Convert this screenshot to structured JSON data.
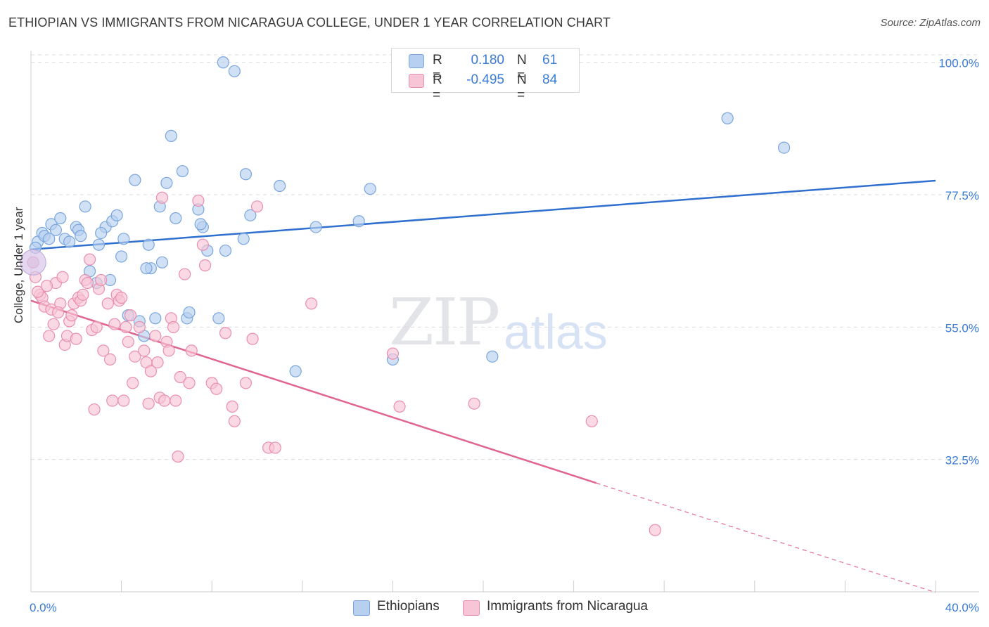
{
  "header": {
    "title": "ETHIOPIAN VS IMMIGRANTS FROM NICARAGUA COLLEGE, UNDER 1 YEAR CORRELATION CHART",
    "source": "Source: ZipAtlas.com"
  },
  "legend_top": {
    "rows": [
      {
        "r_label": "R =",
        "r_value": "0.180",
        "n_label": "N =",
        "n_value": "61"
      },
      {
        "r_label": "R =",
        "r_value": "-0.495",
        "n_label": "N =",
        "n_value": "84"
      }
    ]
  },
  "legend_bottom": {
    "items": [
      {
        "label": "Ethiopians"
      },
      {
        "label": "Immigrants from Nicaragua"
      }
    ]
  },
  "watermark": {
    "zip": "ZIP",
    "atlas": "atlas"
  },
  "colors": {
    "blue_fill": "#b7d0f0",
    "blue_stroke": "#7aa6dd",
    "blue_line": "#2f6fce",
    "pink_fill": "#f7c5d6",
    "pink_stroke": "#e98fae",
    "pink_line": "#e0658f",
    "axis_text": "#3a7bd5",
    "grid": "#dcdcdc"
  },
  "chart_data": {
    "type": "scatter",
    "title": "ETHIOPIAN VS IMMIGRANTS FROM NICARAGUA COLLEGE, UNDER 1 YEAR CORRELATION CHART",
    "xlabel": "",
    "ylabel": "College, Under 1 year",
    "xlim": [
      0,
      40
    ],
    "ylim": [
      10,
      102
    ],
    "x_tick_labels": [
      "0.0%",
      "40.0%"
    ],
    "y_ticks": [
      32.5,
      55.0,
      77.5,
      100.0
    ],
    "y_tick_labels": [
      "32.5%",
      "55.0%",
      "77.5%",
      "100.0%"
    ],
    "grid": true,
    "series": [
      {
        "name": "Ethiopians",
        "color": "blue",
        "trend": {
          "x": [
            0,
            40
          ],
          "y": [
            68.2,
            79.9
          ]
        },
        "points": [
          [
            0.1,
            66.0
          ],
          [
            0.3,
            69.5
          ],
          [
            0.5,
            71.0
          ],
          [
            0.6,
            70.5
          ],
          [
            0.9,
            72.5
          ],
          [
            1.1,
            71.5
          ],
          [
            1.3,
            73.5
          ],
          [
            1.5,
            70.0
          ],
          [
            1.7,
            69.5
          ],
          [
            2.0,
            72.0
          ],
          [
            2.1,
            71.5
          ],
          [
            2.4,
            75.5
          ],
          [
            2.6,
            64.5
          ],
          [
            2.9,
            62.5
          ],
          [
            3.0,
            69.0
          ],
          [
            3.3,
            72.0
          ],
          [
            3.5,
            63.0
          ],
          [
            3.6,
            73.0
          ],
          [
            3.8,
            74.0
          ],
          [
            4.0,
            67.0
          ],
          [
            4.1,
            70.0
          ],
          [
            4.3,
            57.0
          ],
          [
            4.6,
            80.0
          ],
          [
            4.8,
            56.0
          ],
          [
            5.0,
            53.5
          ],
          [
            5.2,
            69.0
          ],
          [
            5.3,
            65.0
          ],
          [
            5.5,
            56.5
          ],
          [
            5.7,
            75.5
          ],
          [
            5.8,
            66.0
          ],
          [
            6.0,
            79.5
          ],
          [
            6.2,
            87.5
          ],
          [
            6.4,
            73.5
          ],
          [
            6.7,
            81.5
          ],
          [
            6.9,
            56.5
          ],
          [
            7.0,
            57.5
          ],
          [
            7.4,
            75.0
          ],
          [
            7.6,
            72.0
          ],
          [
            7.8,
            68.0
          ],
          [
            8.5,
            100.0
          ],
          [
            9.0,
            98.5
          ],
          [
            8.3,
            56.5
          ],
          [
            8.6,
            68.0
          ],
          [
            9.4,
            70.0
          ],
          [
            9.5,
            81.0
          ],
          [
            9.7,
            74.0
          ],
          [
            11.0,
            79.0
          ],
          [
            11.7,
            47.5
          ],
          [
            12.6,
            72.0
          ],
          [
            14.5,
            73.0
          ],
          [
            15.0,
            78.5
          ],
          [
            16.0,
            49.5
          ],
          [
            20.4,
            50.0
          ],
          [
            30.8,
            90.5
          ],
          [
            33.3,
            85.5
          ],
          [
            0.2,
            68.5
          ],
          [
            0.8,
            70.0
          ],
          [
            2.2,
            70.5
          ],
          [
            3.1,
            71.0
          ],
          [
            5.1,
            65.0
          ],
          [
            7.5,
            72.5
          ]
        ]
      },
      {
        "name": "Immigrants from Nicaragua",
        "color": "pink",
        "trend": {
          "x": [
            0,
            25
          ],
          "y": [
            59.5,
            28.5
          ]
        },
        "trend_dashed": {
          "x": [
            25,
            40
          ],
          "y": [
            28.5,
            9.9
          ]
        },
        "points": [
          [
            0.1,
            66.0
          ],
          [
            0.2,
            63.5
          ],
          [
            0.4,
            60.5
          ],
          [
            0.5,
            60.0
          ],
          [
            0.6,
            58.5
          ],
          [
            0.8,
            53.5
          ],
          [
            0.9,
            58.0
          ],
          [
            1.0,
            55.5
          ],
          [
            1.1,
            62.5
          ],
          [
            1.3,
            59.0
          ],
          [
            1.4,
            63.5
          ],
          [
            1.5,
            52.0
          ],
          [
            1.6,
            53.5
          ],
          [
            1.7,
            56.0
          ],
          [
            1.8,
            57.0
          ],
          [
            1.9,
            59.0
          ],
          [
            2.0,
            53.0
          ],
          [
            2.1,
            60.0
          ],
          [
            2.2,
            59.5
          ],
          [
            2.4,
            63.0
          ],
          [
            2.5,
            62.5
          ],
          [
            2.6,
            66.5
          ],
          [
            2.7,
            54.5
          ],
          [
            2.8,
            41.0
          ],
          [
            2.9,
            55.0
          ],
          [
            3.0,
            61.5
          ],
          [
            3.1,
            63.0
          ],
          [
            3.2,
            51.0
          ],
          [
            3.4,
            59.0
          ],
          [
            3.5,
            49.5
          ],
          [
            3.6,
            42.5
          ],
          [
            3.7,
            55.5
          ],
          [
            3.8,
            60.5
          ],
          [
            3.9,
            59.5
          ],
          [
            4.0,
            60.0
          ],
          [
            4.1,
            42.5
          ],
          [
            4.2,
            55.0
          ],
          [
            4.3,
            52.5
          ],
          [
            4.5,
            45.5
          ],
          [
            4.6,
            50.0
          ],
          [
            4.8,
            55.0
          ],
          [
            5.0,
            51.0
          ],
          [
            5.1,
            49.0
          ],
          [
            5.2,
            42.0
          ],
          [
            5.3,
            47.5
          ],
          [
            5.5,
            53.5
          ],
          [
            5.6,
            49.0
          ],
          [
            5.7,
            43.0
          ],
          [
            5.8,
            77.0
          ],
          [
            5.9,
            42.5
          ],
          [
            6.0,
            52.5
          ],
          [
            6.1,
            51.0
          ],
          [
            6.2,
            56.5
          ],
          [
            6.3,
            55.0
          ],
          [
            6.4,
            42.5
          ],
          [
            6.5,
            33.0
          ],
          [
            6.6,
            46.5
          ],
          [
            6.8,
            64.0
          ],
          [
            7.0,
            45.5
          ],
          [
            7.1,
            51.0
          ],
          [
            7.4,
            76.5
          ],
          [
            7.6,
            69.0
          ],
          [
            7.7,
            65.5
          ],
          [
            8.0,
            45.5
          ],
          [
            8.2,
            44.5
          ],
          [
            8.6,
            54.0
          ],
          [
            8.9,
            41.5
          ],
          [
            9.0,
            39.0
          ],
          [
            9.5,
            45.5
          ],
          [
            9.8,
            53.0
          ],
          [
            10.0,
            75.5
          ],
          [
            10.5,
            34.5
          ],
          [
            10.8,
            34.5
          ],
          [
            12.4,
            59.0
          ],
          [
            16.0,
            50.5
          ],
          [
            16.3,
            41.5
          ],
          [
            19.6,
            42.0
          ],
          [
            24.8,
            39.0
          ],
          [
            27.6,
            20.5
          ],
          [
            0.3,
            61.0
          ],
          [
            0.7,
            62.0
          ],
          [
            1.2,
            57.5
          ],
          [
            2.3,
            60.5
          ],
          [
            4.4,
            57.0
          ]
        ]
      }
    ]
  }
}
